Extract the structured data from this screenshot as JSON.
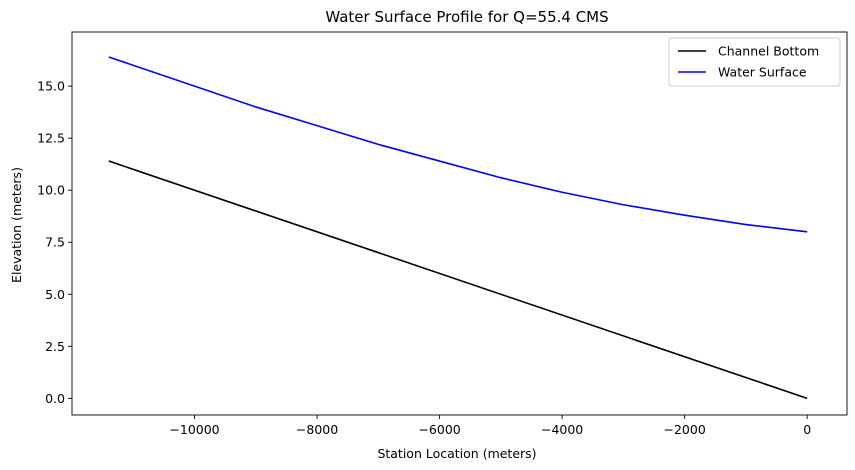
{
  "chart_data": {
    "type": "line",
    "title": "Water Surface Profile for Q=55.4 CMS",
    "xlabel": "Station Location (meters)",
    "ylabel": "Elevation (meters)",
    "xlim": [
      -12000,
      650
    ],
    "ylim": [
      -0.8,
      17.6
    ],
    "xticks": [
      -10000,
      -8000,
      -6000,
      -4000,
      -2000,
      0
    ],
    "xtick_labels": [
      "−10000",
      "−8000",
      "−6000",
      "−4000",
      "−2000",
      "0"
    ],
    "yticks": [
      0,
      2.5,
      5,
      7.5,
      10,
      12.5,
      15
    ],
    "ytick_labels": [
      "0.0",
      "2.5",
      "5.0",
      "7.5",
      "10.0",
      "12.5",
      "15.0"
    ],
    "grid": false,
    "legend_position": "top-right",
    "series": [
      {
        "name": "Channel Bottom",
        "color": "#000000",
        "x": [
          -11400,
          0
        ],
        "y": [
          11.4,
          0.0
        ]
      },
      {
        "name": "Water Surface",
        "color": "#0000ff",
        "x": [
          -11400,
          -10000,
          -9000,
          -8000,
          -7000,
          -6000,
          -5000,
          -4000,
          -3000,
          -2000,
          -1000,
          0
        ],
        "y": [
          16.4,
          15.0,
          14.0,
          13.1,
          12.2,
          11.4,
          10.6,
          9.9,
          9.3,
          8.8,
          8.35,
          8.0
        ]
      }
    ]
  }
}
